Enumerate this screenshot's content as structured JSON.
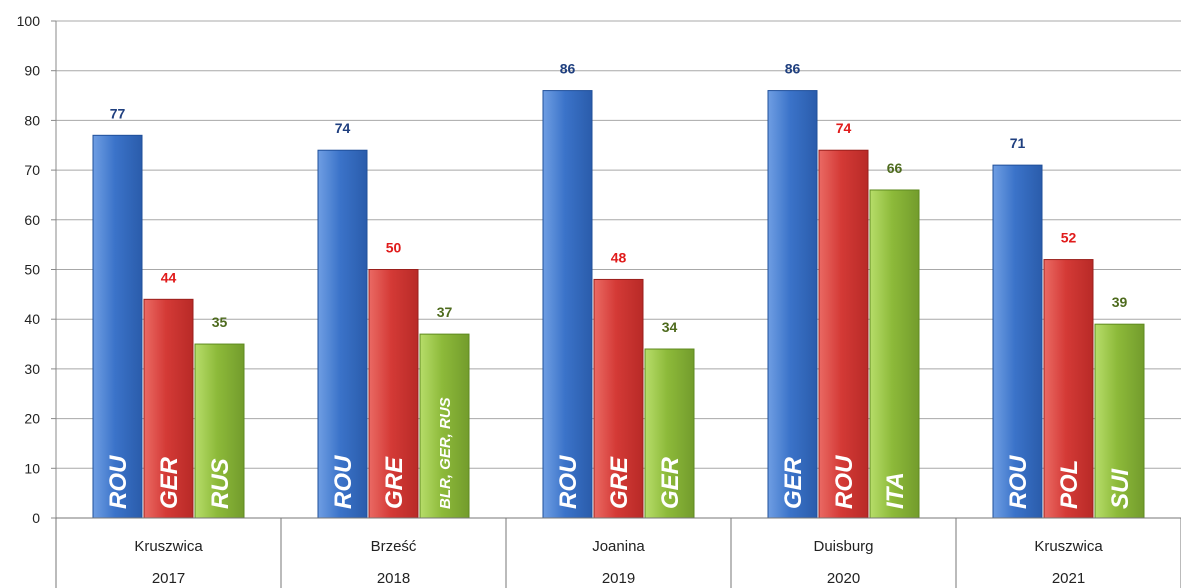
{
  "chart_data": {
    "type": "bar",
    "ylim": [
      0,
      100
    ],
    "yticks": [
      0,
      10,
      20,
      30,
      40,
      50,
      60,
      70,
      80,
      90,
      100
    ],
    "grid": true,
    "groups": [
      {
        "venue": "Kruszwica",
        "year": "2017",
        "bars": [
          {
            "label": "ROU",
            "value": 77
          },
          {
            "label": "GER",
            "value": 44
          },
          {
            "label": "RUS",
            "value": 35
          }
        ]
      },
      {
        "venue": "Brześć",
        "year": "2018",
        "bars": [
          {
            "label": "ROU",
            "value": 74
          },
          {
            "label": "GRE",
            "value": 50
          },
          {
            "label": "BLR, GER, RUS",
            "value": 37
          }
        ]
      },
      {
        "venue": "Joanina",
        "year": "2019",
        "bars": [
          {
            "label": "ROU",
            "value": 86
          },
          {
            "label": "GRE",
            "value": 48
          },
          {
            "label": "GER",
            "value": 34
          }
        ]
      },
      {
        "venue": "Duisburg",
        "year": "2020",
        "bars": [
          {
            "label": "GER",
            "value": 86
          },
          {
            "label": "ROU",
            "value": 74
          },
          {
            "label": "ITA",
            "value": 66
          }
        ]
      },
      {
        "venue": "Kruszwica",
        "year": "2021",
        "bars": [
          {
            "label": "ROU",
            "value": 71
          },
          {
            "label": "POL",
            "value": 52
          },
          {
            "label": "SUI",
            "value": 39
          }
        ]
      }
    ],
    "colors": {
      "bar_fills": [
        "#3b73c9",
        "#d43a36",
        "#8dba3a"
      ],
      "bar_strokes": [
        "#1f4f9a",
        "#9a1f1c",
        "#5e8a1f"
      ],
      "value_label_colors": [
        "#1f3f7f",
        "#e01b1b",
        "#4e6b1e"
      ]
    }
  }
}
